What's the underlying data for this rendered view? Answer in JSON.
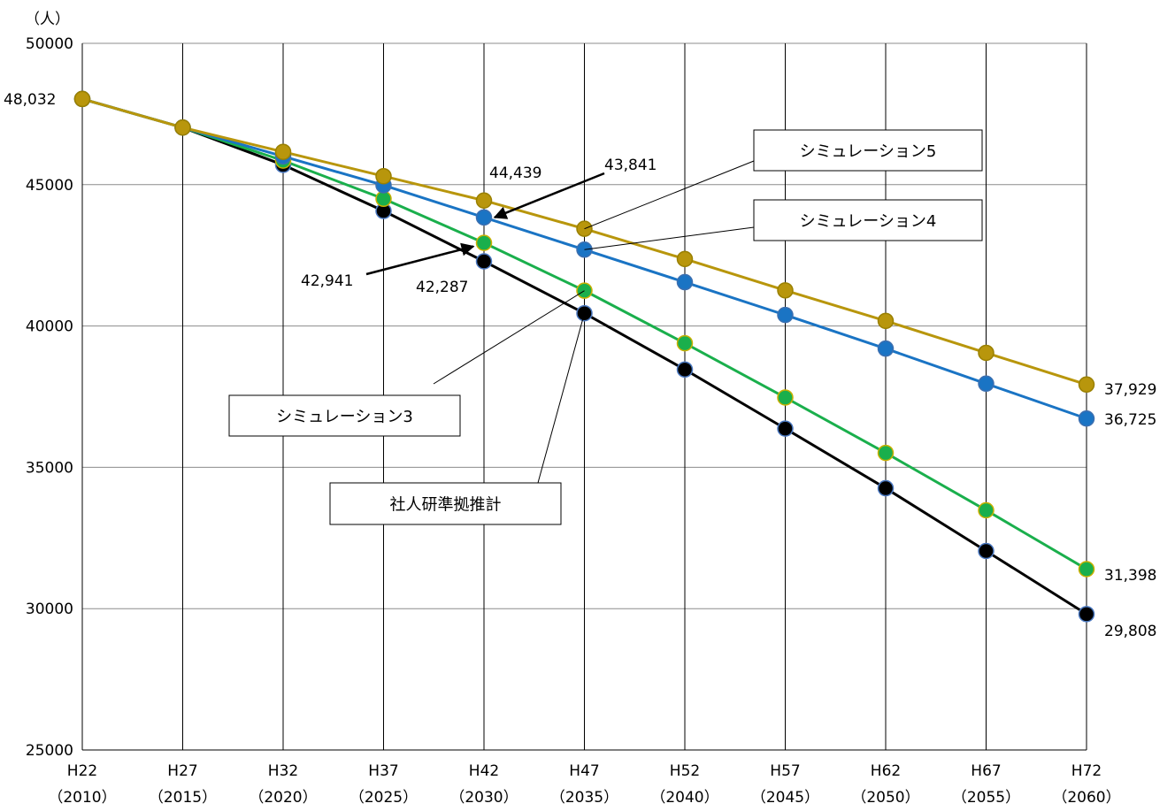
{
  "chart_data": {
    "type": "line",
    "ylabel": "（人）",
    "ylim": [
      25000,
      50000
    ],
    "yticks": [
      25000,
      30000,
      35000,
      40000,
      45000,
      50000
    ],
    "grid": true,
    "categories": [
      {
        "era": "H22",
        "year": "（2010）"
      },
      {
        "era": "H27",
        "year": "（2015）"
      },
      {
        "era": "H32",
        "year": "（2020）"
      },
      {
        "era": "H37",
        "year": "（2025）"
      },
      {
        "era": "H42",
        "year": "（2030）"
      },
      {
        "era": "H47",
        "year": "（2035）"
      },
      {
        "era": "H52",
        "year": "（2040）"
      },
      {
        "era": "H57",
        "year": "（2045）"
      },
      {
        "era": "H62",
        "year": "（2050）"
      },
      {
        "era": "H67",
        "year": "（2055）"
      },
      {
        "era": "H72",
        "year": "（2060）"
      }
    ],
    "series": [
      {
        "name": "社人研準拠推計",
        "color": "#000000",
        "values": [
          48032,
          47020,
          45700,
          44070,
          42287,
          40450,
          38460,
          36370,
          34260,
          32040,
          29808
        ]
      },
      {
        "name": "シミュレーション3",
        "color": "#1aaf4c",
        "values": [
          48032,
          47020,
          45850,
          44500,
          42941,
          41250,
          39390,
          37470,
          35510,
          33480,
          31398
        ]
      },
      {
        "name": "シミュレーション4",
        "color": "#1a74c4",
        "values": [
          48032,
          47020,
          46000,
          44980,
          43841,
          42700,
          41550,
          40390,
          39200,
          37960,
          36725
        ]
      },
      {
        "name": "シミュレーション5",
        "color": "#b8960c",
        "values": [
          48032,
          47020,
          46160,
          45300,
          44439,
          43440,
          42370,
          41260,
          40180,
          39050,
          37929
        ]
      }
    ],
    "data_labels": [
      {
        "text": "48,032"
      },
      {
        "text": "44,439"
      },
      {
        "text": "43,841"
      },
      {
        "text": "42,941"
      },
      {
        "text": "42,287"
      },
      {
        "text": "37,929"
      },
      {
        "text": "36,725"
      },
      {
        "text": "31,398"
      },
      {
        "text": "29,808"
      }
    ],
    "callouts": [
      {
        "text": "シミュレーション5"
      },
      {
        "text": "シミュレーション4"
      },
      {
        "text": "シミュレーション3"
      },
      {
        "text": "社人研準拠推計"
      }
    ]
  }
}
